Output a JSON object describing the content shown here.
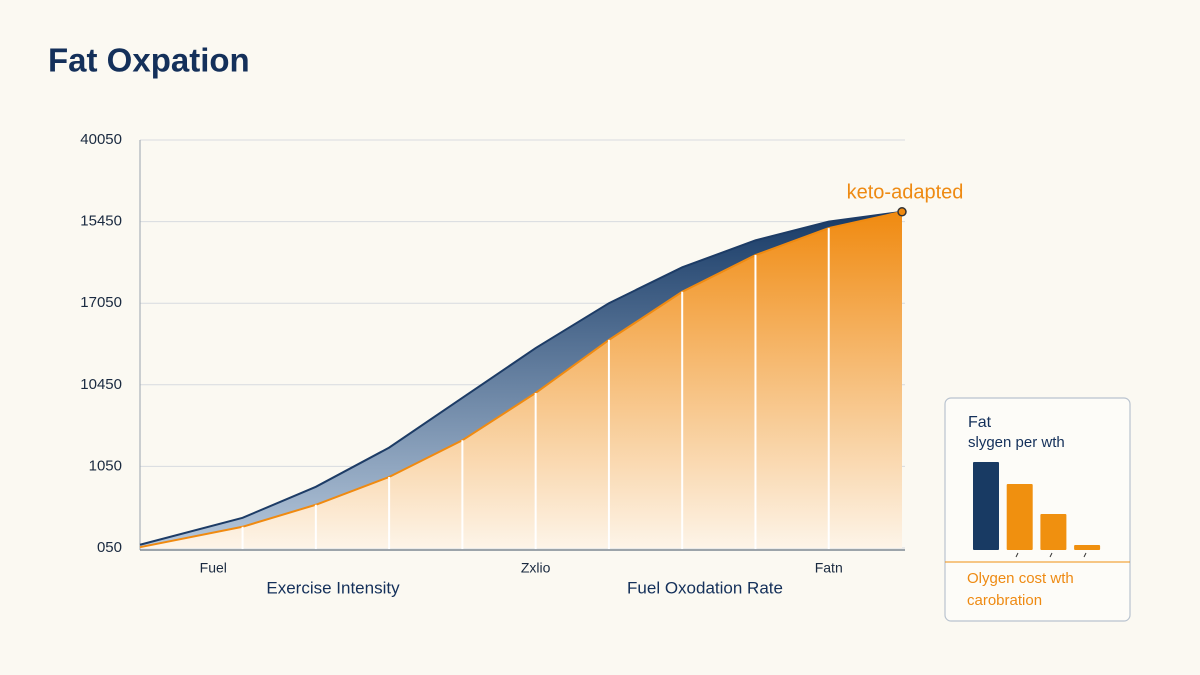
{
  "chart_data": [
    {
      "type": "area",
      "title": "Fat Oxpation",
      "x": [
        0,
        1.4,
        2.4,
        3.4,
        4.4,
        5.4,
        6.4,
        7.4,
        8.4,
        9.4,
        10.4
      ],
      "xlim": [
        0,
        10.4
      ],
      "xticks": [
        {
          "value": 1,
          "label": "Fuel"
        },
        {
          "value": 5.4,
          "label": "Zxlio"
        },
        {
          "value": 9.4,
          "label": "Fatn"
        }
      ],
      "xlabels": [
        "Exercise Intensity",
        "Fuel Oxodation Rate"
      ],
      "ylim": [
        0,
        5
      ],
      "yticks": [
        {
          "value": 0,
          "label": "050"
        },
        {
          "value": 1,
          "label": "1050"
        },
        {
          "value": 2,
          "label": "10450"
        },
        {
          "value": 3,
          "label": "17050"
        },
        {
          "value": 4,
          "label": "15450"
        },
        {
          "value": 5,
          "label": "40050"
        }
      ],
      "grid": true,
      "series": [
        {
          "color": "#1d3c66",
          "values": [
            0.04,
            0.37,
            0.75,
            1.23,
            1.84,
            2.45,
            3.0,
            3.44,
            3.77,
            4.0,
            4.12
          ]
        },
        {
          "color": "#f08a10",
          "values": [
            0.01,
            0.26,
            0.53,
            0.87,
            1.32,
            1.9,
            2.55,
            3.14,
            3.59,
            3.92,
            4.12
          ]
        }
      ],
      "annotation": "keto-adapted"
    },
    {
      "type": "bar",
      "title": "Fat",
      "subtitle": "slygen per wth",
      "values": [
        88,
        66,
        36,
        5
      ],
      "colors": [
        "#183a63",
        "#f0900f",
        "#f0900f",
        "#f0900f"
      ],
      "ylim": [
        0,
        100
      ],
      "caption": [
        "Olygen cost wth",
        "carobration"
      ]
    }
  ]
}
